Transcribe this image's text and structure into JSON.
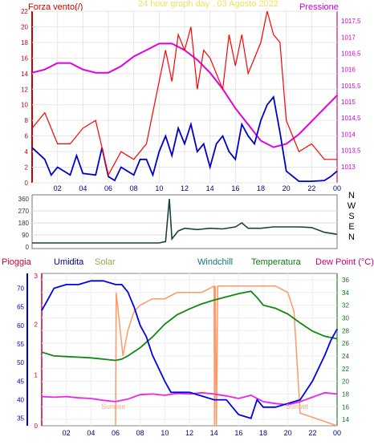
{
  "chart_data": [
    {
      "type": "line",
      "title": "24 hour graph day , 03 Agosto 2022",
      "left_label": "Forza vento(/)",
      "right_label": "Pressione",
      "colors": {
        "gust": "#ff0000",
        "wind": "#0000cc",
        "pressure": "#e000e0",
        "title": "#f0e060",
        "frame_left": "#cc0000",
        "frame_right": "#cc0077"
      },
      "x_ticks": [
        "02",
        "04",
        "06",
        "08",
        "10",
        "12",
        "14",
        "16",
        "18",
        "20",
        "22",
        "00"
      ],
      "y_ticks_left": [
        "0",
        "2",
        "4",
        "6",
        "8",
        "10",
        "12",
        "14",
        "16",
        "18",
        "20",
        "22"
      ],
      "y_ticks_right": [
        "1013",
        "1013,5",
        "1014",
        "1014,5",
        "1015",
        "1015,5",
        "1016",
        "1016,5",
        "1017",
        "1017,5"
      ],
      "ylim_left": [
        0,
        22
      ],
      "ylim_right": [
        1012.5,
        1017.8
      ],
      "series": [
        {
          "key": "pressure",
          "x": [
            0,
            1,
            2,
            3,
            4,
            5,
            6,
            7,
            8,
            9,
            10,
            11,
            12,
            13,
            14,
            15,
            16,
            17,
            18,
            19,
            20,
            21,
            22,
            23,
            24
          ],
          "values": [
            1015.9,
            1016.0,
            1016.2,
            1016.2,
            1016.0,
            1015.9,
            1015.9,
            1016.1,
            1016.4,
            1016.6,
            1016.8,
            1016.8,
            1016.6,
            1016.3,
            1015.9,
            1015.4,
            1014.8,
            1014.3,
            1013.8,
            1013.6,
            1013.7,
            1014.0,
            1014.4,
            1014.8,
            1015.2
          ]
        },
        {
          "key": "wind",
          "x": [
            0,
            1,
            1.5,
            2,
            3,
            3.5,
            4,
            5,
            5.5,
            6,
            6.5,
            7,
            8,
            8.5,
            9,
            9.5,
            10,
            10.5,
            11,
            11.5,
            12,
            12.5,
            13,
            13.5,
            14,
            14.5,
            15,
            15.5,
            16,
            16.5,
            17,
            17.5,
            18,
            18.5,
            19,
            19.5,
            20,
            21,
            22,
            23,
            23.5,
            24
          ],
          "values": [
            4.5,
            3,
            1,
            2,
            1,
            3.5,
            1.2,
            1,
            4.5,
            0.8,
            0.3,
            2,
            1,
            3,
            3,
            1,
            4,
            6,
            3.5,
            7,
            5,
            7.5,
            4,
            5,
            2,
            5,
            6,
            4,
            3,
            7.5,
            6,
            5,
            8,
            10,
            11,
            6.5,
            1.5,
            0.2,
            0.2,
            0.3,
            0.8,
            1.5
          ]
        },
        {
          "key": "gust",
          "x": [
            0,
            1,
            2,
            3,
            4,
            5,
            6,
            7,
            8,
            9,
            10,
            10.5,
            11,
            11.5,
            12,
            12.5,
            13,
            13.5,
            14,
            14.5,
            15,
            15.5,
            16,
            16.5,
            17,
            17.5,
            18,
            18.5,
            19,
            19.5,
            20,
            21,
            22,
            23,
            24
          ],
          "values": [
            7,
            9,
            5,
            5,
            7,
            8,
            1,
            4,
            3,
            5,
            13,
            17,
            13,
            19,
            17,
            20,
            12,
            17,
            16,
            14,
            12,
            19,
            15,
            19,
            14,
            16,
            18,
            22,
            19,
            18,
            8,
            4,
            5,
            3,
            3
          ]
        }
      ]
    },
    {
      "type": "line",
      "right_labels": [
        "N",
        "W",
        "S",
        "E",
        "N"
      ],
      "y_ticks": [
        "360",
        "270",
        "180",
        "90",
        "0"
      ],
      "ylim": [
        0,
        360
      ],
      "colors": {
        "direction": "#1a4040",
        "spike": "#003333"
      },
      "series": [
        {
          "key": "direction",
          "x": [
            0,
            10,
            10.5,
            10.8,
            11,
            11.5,
            12,
            13,
            14,
            15,
            16,
            16.5,
            17,
            18,
            19,
            20,
            21,
            22,
            23,
            24
          ],
          "values": [
            30,
            30,
            40,
            360,
            60,
            120,
            140,
            130,
            140,
            135,
            150,
            180,
            140,
            140,
            150,
            150,
            150,
            145,
            110,
            95
          ]
        }
      ]
    },
    {
      "type": "line",
      "legend": {
        "rain": "Pioggia",
        "humidity": "Umidita",
        "solar": "Solar",
        "windchill": "Windchill",
        "temperature": "Temperatura",
        "dew": "Dew Point (°C)"
      },
      "x_ticks": [
        "02",
        "04",
        "06",
        "08",
        "10",
        "12",
        "14",
        "16",
        "18",
        "20",
        "22",
        "00"
      ],
      "y_ticks_left": [
        "35",
        "40",
        "45",
        "50",
        "55",
        "60",
        "65",
        "70"
      ],
      "y_ticks_right": [
        "14",
        "16",
        "18",
        "20",
        "22",
        "24",
        "26",
        "28",
        "30",
        "32",
        "34",
        "36"
      ],
      "rain_ticks": [
        "0",
        "1",
        "2",
        "3"
      ],
      "ylim_left": [
        33,
        74
      ],
      "ylim_right": [
        13,
        37
      ],
      "annotations": {
        "sunrise": "Sunrise",
        "sunset": "Sunset"
      },
      "colors": {
        "humidity": "#0000ee",
        "temperature": "#118811",
        "solar": "#ff9966",
        "dew": "#ee22ee",
        "rain": "#cc0033",
        "windchill": "#117777"
      },
      "series": [
        {
          "key": "humidity",
          "x": [
            0,
            0.5,
            1,
            2,
            3,
            4,
            5,
            6,
            6.5,
            7,
            7.5,
            8,
            8.5,
            9,
            10,
            10.5,
            11,
            12,
            13,
            14,
            15,
            16,
            17,
            17.5,
            18,
            19,
            20,
            21,
            22,
            23,
            23.5,
            24
          ],
          "values": [
            64,
            67,
            70,
            71,
            71,
            72,
            72,
            71,
            71,
            69,
            65,
            60,
            57,
            52,
            45,
            42,
            42,
            42,
            41,
            40,
            40,
            36,
            35,
            40,
            38,
            38,
            39,
            40,
            45,
            52,
            56,
            59
          ]
        },
        {
          "key": "temperature",
          "x": [
            0,
            1,
            2,
            3,
            4,
            5,
            6,
            6.5,
            7,
            8,
            9,
            10,
            11,
            12,
            13,
            14,
            15,
            16,
            17,
            17.5,
            18,
            19,
            20,
            21,
            22,
            23,
            24
          ],
          "values": [
            24.6,
            24,
            23.9,
            23.8,
            23.7,
            23.5,
            23.3,
            23.5,
            24,
            25.3,
            27,
            29,
            30.5,
            31.4,
            32.2,
            32.8,
            33.3,
            33.8,
            34.2,
            33.2,
            32,
            31.5,
            30.6,
            29.2,
            27.9,
            27.1,
            26.7
          ]
        },
        {
          "key": "solar",
          "x": [
            6,
            6.05,
            6.6,
            7,
            7.5,
            8,
            9,
            10,
            11,
            12,
            13,
            14,
            14.05,
            14.1,
            14.2,
            14.3,
            15,
            16,
            17,
            18,
            19,
            20,
            20.5,
            21,
            24
          ],
          "values": [
            13,
            34,
            24,
            28,
            31,
            32,
            33,
            33,
            34,
            34,
            34,
            35,
            13,
            35,
            13,
            35,
            35,
            35,
            35,
            35,
            35,
            34,
            31,
            15,
            13
          ]
        },
        {
          "key": "dew",
          "x": [
            0,
            1,
            2,
            3,
            4,
            5,
            6,
            7,
            8,
            9,
            10,
            11,
            12,
            13,
            14,
            15,
            16,
            17,
            18,
            19,
            20,
            21,
            22,
            23,
            24
          ],
          "values": [
            17.6,
            17.5,
            17.6,
            17.4,
            17.3,
            17,
            16.8,
            17.2,
            17.9,
            18,
            17.8,
            18.1,
            18,
            18.2,
            18,
            17.7,
            17.3,
            17.8,
            16.8,
            16.5,
            16.3,
            16.8,
            17.5,
            18.2,
            18
          ]
        }
      ]
    }
  ]
}
